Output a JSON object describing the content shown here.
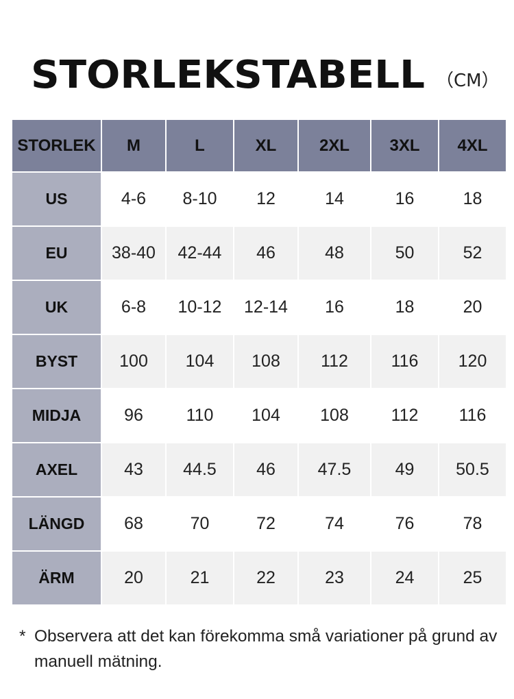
{
  "header": {
    "title": "STORLEKSTABELL",
    "unit": "（CM）"
  },
  "table": {
    "columns": [
      "STORLEK",
      "M",
      "L",
      "XL",
      "2XL",
      "3XL",
      "4XL"
    ],
    "rows": [
      [
        "US",
        "4-6",
        "8-10",
        "12",
        "14",
        "16",
        "18"
      ],
      [
        "EU",
        "38-40",
        "42-44",
        "46",
        "48",
        "50",
        "52"
      ],
      [
        "UK",
        "6-8",
        "10-12",
        "12-14",
        "16",
        "18",
        "20"
      ],
      [
        "BYST",
        "100",
        "104",
        "108",
        "112",
        "116",
        "120"
      ],
      [
        "MIDJA",
        "96",
        "110",
        "104",
        "108",
        "112",
        "116"
      ],
      [
        "AXEL",
        "43",
        "44.5",
        "46",
        "47.5",
        "49",
        "50.5"
      ],
      [
        "LÄNGD",
        "68",
        "70",
        "72",
        "74",
        "76",
        "78"
      ],
      [
        "ÄRM",
        "20",
        "21",
        "22",
        "23",
        "24",
        "25"
      ]
    ]
  },
  "footnote": {
    "marker": "*",
    "text": "Observera att det kan förekomma små variationer på grund av manuell mätning."
  }
}
